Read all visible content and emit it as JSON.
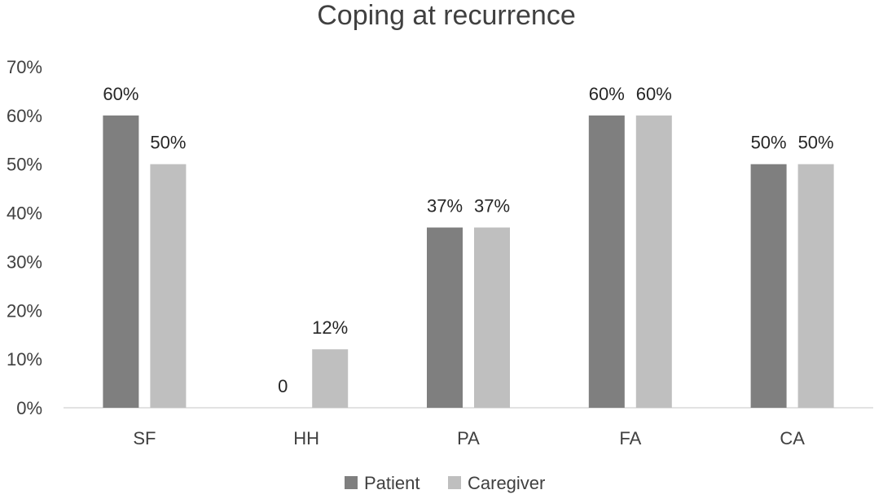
{
  "chart_data": {
    "type": "bar",
    "title": "Coping at recurrence",
    "categories": [
      "SF",
      "HH",
      "PA",
      "FA",
      "CA"
    ],
    "series": [
      {
        "name": "Patient",
        "color": "#7f7f7f",
        "values": [
          60,
          0,
          37,
          60,
          50
        ],
        "labels": [
          "60%",
          "0",
          "37%",
          "60%",
          "50%"
        ]
      },
      {
        "name": "Caregiver",
        "color": "#bfbfbf",
        "values": [
          50,
          12,
          37,
          60,
          50
        ],
        "labels": [
          "50%",
          "12%",
          "37%",
          "60%",
          "50%"
        ]
      }
    ],
    "y_ticks": [
      "0%",
      "10%",
      "20%",
      "30%",
      "40%",
      "50%",
      "60%",
      "70%"
    ],
    "ylim": [
      0,
      70
    ],
    "grid": false,
    "legend_position": "bottom",
    "xlabel": "",
    "ylabel": ""
  }
}
